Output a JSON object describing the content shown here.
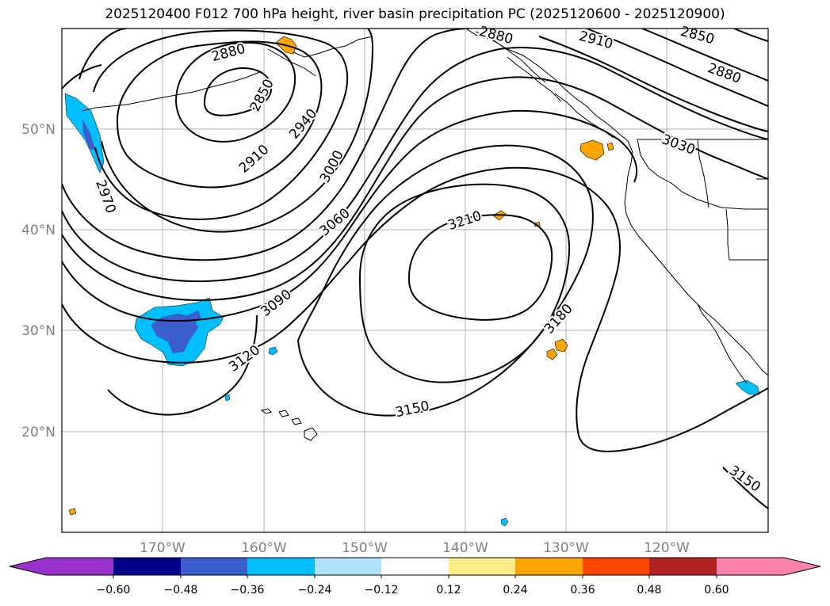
{
  "title": "2025120400 F012 700 hPa height, river basin precipitation PC (2025120600 - 2025120900)",
  "lat_labels": [
    "50°N",
    "40°N",
    "30°N",
    "20°N"
  ],
  "lon_labels": [
    "170°W",
    "160°W",
    "150°W",
    "140°W",
    "130°W",
    "120°W"
  ],
  "contour_labels": [
    "2880",
    "2850",
    "2910",
    "2940",
    "2970",
    "3000",
    "3060",
    "3090",
    "3120",
    "3150",
    "3210",
    "3180",
    "2850",
    "2880",
    "2910",
    "3030",
    "3150",
    "2880"
  ],
  "colorbar": {
    "ticks": [
      "−0.60",
      "−0.48",
      "−0.36",
      "−0.24",
      "−0.12",
      "0.12",
      "0.24",
      "0.36",
      "0.48",
      "0.60"
    ],
    "colors": [
      "#9932CC",
      "#00008B",
      "#3A5FCD",
      "#00BFFF",
      "#B0E2FF",
      "#FFFFFF",
      "#FFEC8B",
      "#FFA500",
      "#FF4500",
      "#B22222",
      "#FF82AB"
    ]
  },
  "colors": {
    "contour": "#000000",
    "grid": "#b0b0b0",
    "axis_text": "#808080"
  }
}
